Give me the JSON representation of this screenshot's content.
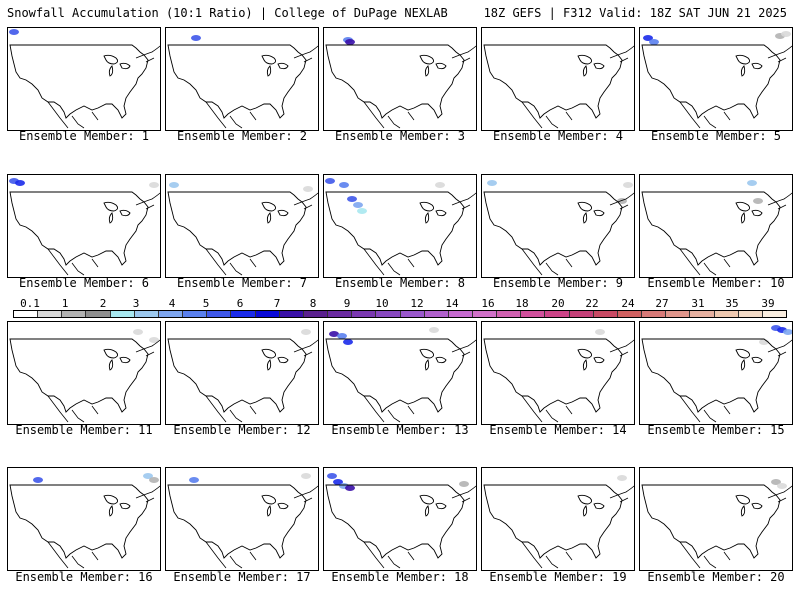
{
  "header": {
    "left": "Snowfall Accumulation (10:1 Ratio) | College of DuPage NEXLAB",
    "right": "18Z GEFS | F312 Valid: 18Z SAT JUN 21 2025"
  },
  "members": [
    {
      "label": "Ensemble Member: 1"
    },
    {
      "label": "Ensemble Member: 2"
    },
    {
      "label": "Ensemble Member: 3"
    },
    {
      "label": "Ensemble Member: 4"
    },
    {
      "label": "Ensemble Member: 5"
    },
    {
      "label": "Ensemble Member: 6"
    },
    {
      "label": "Ensemble Member: 7"
    },
    {
      "label": "Ensemble Member: 8"
    },
    {
      "label": "Ensemble Member: 9"
    },
    {
      "label": "Ensemble Member: 10"
    },
    {
      "label": "Ensemble Member: 11"
    },
    {
      "label": "Ensemble Member: 12"
    },
    {
      "label": "Ensemble Member: 13"
    },
    {
      "label": "Ensemble Member: 14"
    },
    {
      "label": "Ensemble Member: 15"
    },
    {
      "label": "Ensemble Member: 16"
    },
    {
      "label": "Ensemble Member: 17"
    },
    {
      "label": "Ensemble Member: 18"
    },
    {
      "label": "Ensemble Member: 19"
    },
    {
      "label": "Ensemble Member: 20"
    }
  ],
  "scale": {
    "ticks": [
      "0.1",
      "1",
      "2",
      "3",
      "4",
      "5",
      "6",
      "7",
      "8",
      "9",
      "10",
      "12",
      "14",
      "16",
      "18",
      "20",
      "22",
      "24",
      "27",
      "31",
      "35",
      "39"
    ],
    "colors": [
      "#ffffff",
      "#d9d9d9",
      "#b3b3b3",
      "#8f8f8f",
      "#a8e8f0",
      "#9cc8ee",
      "#7ea6f0",
      "#5a80ee",
      "#3f58ea",
      "#1b2bea",
      "#0a0ad8",
      "#3a10a8",
      "#5a208e",
      "#6a2aa0",
      "#7a38b0",
      "#8848c0",
      "#9a58cc",
      "#b060cc",
      "#c66ad0",
      "#d070c8",
      "#d060b0",
      "#d0509c",
      "#cc4488",
      "#c44078",
      "#c84a64",
      "#d06060",
      "#d87a78",
      "#e0968c",
      "#e6b0a0",
      "#eec8b0",
      "#f4dcc8",
      "#faeee0"
    ]
  }
}
